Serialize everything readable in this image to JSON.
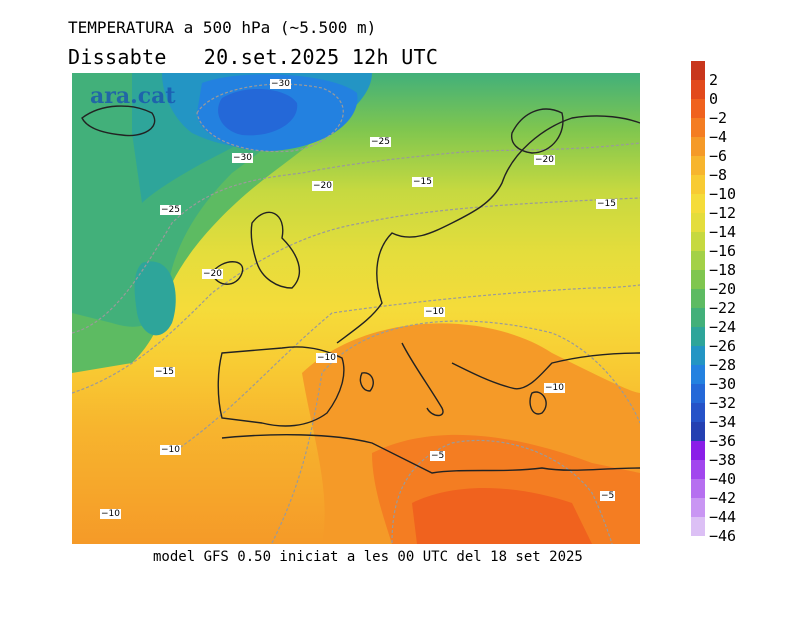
{
  "header": {
    "title": "TEMPERATURA a 500 hPa (~5.500 m)",
    "date_line": "Dissabte   20.set.2025 12h UTC"
  },
  "logo": {
    "text": "ara.cat"
  },
  "footer": {
    "text": "model GFS 0.50 iniciat a les 00 UTC del 18 set 2025"
  },
  "colorbar": {
    "unit_hint": "",
    "levels": [
      {
        "label": "2",
        "color": "#c8361c"
      },
      {
        "label": "0",
        "color": "#e24a1c"
      },
      {
        "label": "−2",
        "color": "#f0621e"
      },
      {
        "label": "−4",
        "color": "#f47d22"
      },
      {
        "label": "−6",
        "color": "#f59a28"
      },
      {
        "label": "−8",
        "color": "#f7b52e"
      },
      {
        "label": "−10",
        "color": "#f8cb33"
      },
      {
        "label": "−12",
        "color": "#f5dc3a"
      },
      {
        "label": "−14",
        "color": "#e4dd3c"
      },
      {
        "label": "−16",
        "color": "#c6d940"
      },
      {
        "label": "−18",
        "color": "#a3d147"
      },
      {
        "label": "−20",
        "color": "#7fc64f"
      },
      {
        "label": "−22",
        "color": "#5dbb62"
      },
      {
        "label": "−24",
        "color": "#42b07a"
      },
      {
        "label": "−26",
        "color": "#2ea59a"
      },
      {
        "label": "−28",
        "color": "#2395c4"
      },
      {
        "label": "−30",
        "color": "#2381e0"
      },
      {
        "label": "−32",
        "color": "#2468d8"
      },
      {
        "label": "−34",
        "color": "#2552c8"
      },
      {
        "label": "−36",
        "color": "#2440b2"
      },
      {
        "label": "−38",
        "color": "#8a1ee8"
      },
      {
        "label": "−40",
        "color": "#a246ee"
      },
      {
        "label": "−42",
        "color": "#b66ff0"
      },
      {
        "label": "−44",
        "color": "#c996f3"
      },
      {
        "label": "−46",
        "color": "#dcc0f5"
      }
    ]
  },
  "contour_labels": [
    "−30",
    "−30",
    "−25",
    "−20",
    "−25",
    "−15",
    "−20",
    "−20",
    "−15",
    "−10",
    "−10",
    "−15",
    "−10",
    "−10",
    "−5",
    "−5",
    "−10"
  ]
}
